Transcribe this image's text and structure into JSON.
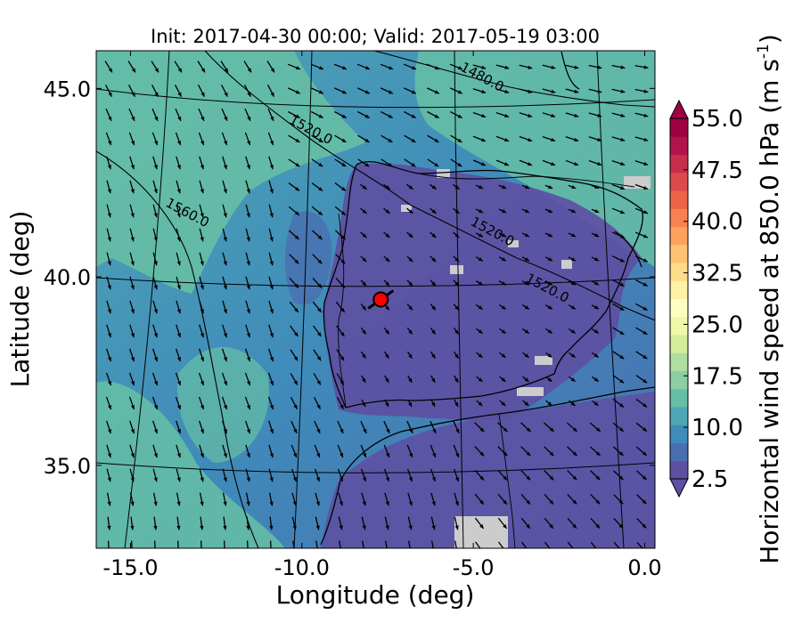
{
  "chart_data": {
    "type": "heatmap",
    "title": "Init: 2017-04-30 00:00; Valid: 2017-05-19 03:00",
    "xlabel": "Longitude (deg)",
    "ylabel": "Latitude (deg)",
    "xlim": [
      -16,
      0.3
    ],
    "ylim": [
      32.8,
      46
    ],
    "xticks": [
      {
        "value": -15.0,
        "label": "-15.0"
      },
      {
        "value": -10.0,
        "label": "-10.0"
      },
      {
        "value": -5.0,
        "label": "-5.0"
      },
      {
        "value": 0.0,
        "label": "0.0"
      }
    ],
    "yticks": [
      {
        "value": 45.0,
        "label": "45.0"
      },
      {
        "value": 40.0,
        "label": "40.0"
      },
      {
        "value": 35.0,
        "label": "35.0"
      }
    ],
    "colorbar": {
      "label": "Horizontal wind speed at 850.0 hPa (m s",
      "label_exp": "-1",
      "label_close": ")",
      "min": 2.5,
      "max": 55.0,
      "step": 2.5,
      "extend": "both",
      "tick_labels": [
        "2.5",
        "10.0",
        "17.5",
        "25.0",
        "32.5",
        "40.0",
        "47.5",
        "55.0"
      ],
      "tick_values": [
        2.5,
        10.0,
        17.5,
        25.0,
        32.5,
        40.0,
        47.5,
        55.0
      ],
      "colors": [
        "#5e4fa2",
        "#4a6fb0",
        "#3f8bba",
        "#4fa6b4",
        "#66bfa5",
        "#8ccfa4",
        "#b0dea2",
        "#d4ed9b",
        "#eef8a8",
        "#fdfec0",
        "#fef0a4",
        "#fedb89",
        "#fdc272",
        "#fca25e",
        "#f88150",
        "#ee6345",
        "#dc4a4c",
        "#c62e4c",
        "#b1134a",
        "#9e0142"
      ],
      "under_color": "#5e4fa2",
      "over_color": "#9e0142"
    },
    "contours": [
      {
        "label": "1480.0",
        "lon": -4.8,
        "lat": 45.2
      },
      {
        "label": "1520.0",
        "lon": -9.8,
        "lat": 43.8
      },
      {
        "label": "1560.0",
        "lon": -13.4,
        "lat": 41.6
      },
      {
        "label": "1520.0",
        "lon": -4.5,
        "lat": 41.1
      },
      {
        "label": "1520.0",
        "lon": -2.9,
        "lat": 39.6
      }
    ],
    "marker": {
      "lon": -7.7,
      "lat": 39.4,
      "color": "#ff0000"
    }
  }
}
